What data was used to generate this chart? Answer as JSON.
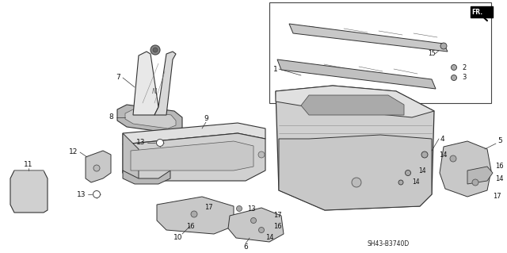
{
  "bg_color": "#ffffff",
  "fig_width": 6.4,
  "fig_height": 3.19,
  "dpi": 100,
  "diagram_code": "SH43-B3740D",
  "fr_label": "FR.",
  "line_color": "#333333",
  "light_gray": "#d8d8d8",
  "mid_gray": "#b8b8b8",
  "dark_gray": "#888888"
}
